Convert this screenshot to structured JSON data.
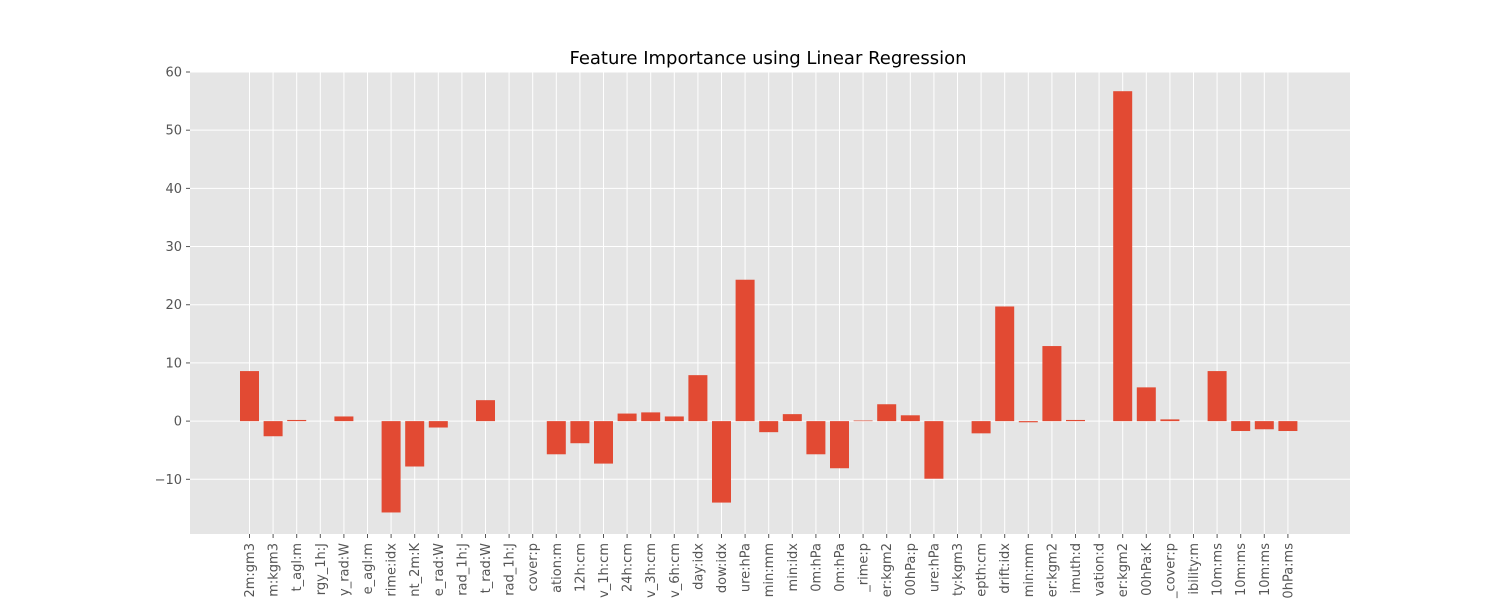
{
  "chart_data": {
    "type": "bar",
    "title": "Feature Importance using Linear Regression",
    "xlabel": "",
    "ylabel": "",
    "ylim": [
      -19.4,
      60
    ],
    "yticks": [
      -10,
      0,
      10,
      20,
      30,
      40,
      50,
      60
    ],
    "ytick_labels": [
      "−10",
      "0",
      "10",
      "20",
      "30",
      "40",
      "50",
      "60"
    ],
    "grid": true,
    "bar_color": "#E24A33",
    "background_color": "#E5E5E5",
    "grid_color": "#FFFFFF",
    "categories": [
      "2m:gm3",
      "m:kgm3",
      "t_agl:m",
      "rgy_1h:J",
      "y_rad:W",
      "e_agl:m",
      "rime:idx",
      "nt_2m:K",
      "e_rad:W",
      "rad_1h:J",
      "t_rad:W",
      "rad_1h:J",
      "cover:p",
      "ation:m",
      "12h:cm",
      "v_1h:cm",
      "24h:cm",
      "v_3h:cm",
      "v_6h:cm",
      "day:idx",
      "dow:idx",
      "ure:hPa",
      "min:mm",
      "min:idx",
      "0m:hPa",
      "0m:hPa",
      "_rime:p",
      "er:kgm2",
      "00hPa:p",
      "ure:hPa",
      "ty:kgm3",
      "epth:cm",
      "drift:idx",
      "min:mm",
      "er:kgm2",
      "imuth:d",
      "vation:d",
      "er:kgm2",
      "00hPa:K",
      "_cover:p",
      "ibility:m",
      "10m:ms",
      "10m:ms",
      "10m:ms",
      "0hPa:ms"
    ],
    "values": [
      8.6,
      -2.6,
      0.2,
      0,
      0.8,
      0,
      -15.7,
      -7.8,
      -1.1,
      0,
      3.6,
      0,
      0,
      -5.7,
      -3.8,
      -7.3,
      1.3,
      1.5,
      0.8,
      7.9,
      -14.0,
      24.3,
      -1.9,
      1.2,
      -5.7,
      -8.1,
      0.1,
      2.9,
      1.0,
      -9.9,
      0,
      -2.1,
      19.7,
      -0.2,
      12.9,
      0.2,
      0,
      56.7,
      5.8,
      0.3,
      0,
      8.6,
      -1.7,
      -1.4,
      -1.7
    ]
  }
}
